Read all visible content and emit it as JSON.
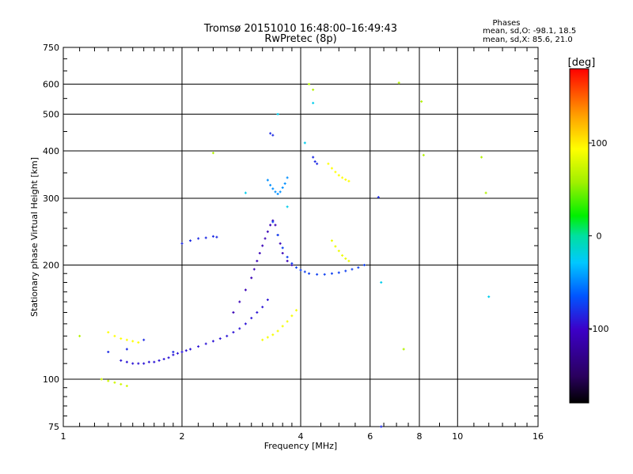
{
  "chart_data": {
    "type": "scatter",
    "title": "Tromsø 20151010 16:48:00–16:49:43",
    "subtitle": "RwPretec (8p)",
    "xlabel": "Frequency [MHz]",
    "ylabel": "Stationary phase Virtual Height [km]",
    "x_scale": "log",
    "y_scale": "log",
    "xlim": [
      1,
      16
    ],
    "ylim": [
      75,
      750
    ],
    "grid": true,
    "x_ticks": [
      1,
      2,
      4,
      6,
      8,
      10,
      16
    ],
    "x_tick_labels": [
      "1",
      "2",
      "4",
      "6",
      "8",
      "10",
      "16"
    ],
    "y_ticks": [
      75,
      100,
      200,
      300,
      400,
      500,
      600,
      750
    ],
    "y_tick_labels": [
      "75",
      "100",
      "200",
      "300",
      "400",
      "500",
      "600",
      "750"
    ],
    "phases_box": {
      "title": "Phases",
      "line_o": "mean, sd,O: -98.1, 18.5",
      "line_x": "mean, sd,X:  85.6, 21.0"
    },
    "colorbar": {
      "label": "[deg]",
      "range": [
        -180,
        180
      ],
      "ticks": [
        100,
        0,
        -100
      ],
      "tick_labels": [
        "100",
        "0",
        "-100"
      ]
    },
    "series": [
      {
        "phase_color_deg": -115,
        "x": [
          1.4,
          1.45,
          1.5,
          1.55,
          1.6,
          1.65,
          1.7,
          1.75,
          1.8,
          1.85,
          1.9,
          1.95,
          2.0,
          2.05,
          2.1,
          2.2,
          2.3,
          2.4,
          2.5,
          2.6,
          2.7,
          2.8,
          2.9,
          3.0,
          3.1,
          3.2,
          3.3
        ],
        "y": [
          112,
          111,
          110,
          110,
          110,
          111,
          111,
          112,
          113,
          114,
          116,
          117,
          118,
          119,
          120,
          122,
          124,
          126,
          128,
          130,
          133,
          136,
          140,
          145,
          150,
          155,
          162
        ]
      },
      {
        "phase_color_deg": -125,
        "x": [
          2.7,
          2.8,
          2.9,
          3.0,
          3.05,
          3.1,
          3.15,
          3.2,
          3.25,
          3.3,
          3.35,
          3.4,
          3.45,
          3.5,
          3.55,
          3.6,
          3.7,
          3.8
        ],
        "y": [
          150,
          160,
          172,
          185,
          195,
          205,
          215,
          225,
          235,
          245,
          255,
          262,
          255,
          240,
          228,
          215,
          205,
          200
        ]
      },
      {
        "phase_color_deg": -105,
        "x": [
          3.4,
          3.5,
          3.6,
          3.7,
          3.8,
          3.9,
          4.0,
          4.1,
          4.2,
          4.4,
          4.6,
          4.8,
          5.0,
          5.2,
          5.4,
          5.6,
          5.8
        ],
        "y": [
          260,
          240,
          222,
          210,
          202,
          197,
          194,
          192,
          190,
          189,
          189,
          190,
          191,
          193,
          195,
          197,
          200
        ]
      },
      {
        "phase_color_deg": -85,
        "x": [
          3.3,
          3.35,
          3.4,
          3.45,
          3.5,
          3.55,
          3.6,
          3.65,
          3.7
        ],
        "y": [
          335,
          325,
          318,
          312,
          308,
          312,
          320,
          328,
          340
        ]
      },
      {
        "phase_color_deg": 95,
        "x": [
          3.2,
          3.3,
          3.4,
          3.5,
          3.6,
          3.7,
          3.8,
          3.9
        ],
        "y": [
          127,
          129,
          131,
          134,
          138,
          142,
          147,
          152
        ]
      },
      {
        "phase_color_deg": 100,
        "x": [
          4.7,
          4.8,
          4.9,
          5.0,
          5.1,
          5.2,
          5.3
        ],
        "y": [
          370,
          360,
          352,
          345,
          340,
          336,
          333
        ]
      },
      {
        "phase_color_deg": 90,
        "x": [
          4.8,
          4.9,
          5.0,
          5.1,
          5.2,
          5.3
        ],
        "y": [
          232,
          224,
          218,
          212,
          208,
          205
        ]
      },
      {
        "phase_color_deg": 100,
        "x": [
          1.3,
          1.35,
          1.4,
          1.45,
          1.5,
          1.55
        ],
        "y": [
          133,
          130,
          128,
          127,
          126,
          125
        ]
      },
      {
        "phase_color_deg": 75,
        "x": [
          1.25,
          1.3,
          1.35,
          1.4,
          1.45
        ],
        "y": [
          100,
          99,
          98,
          97,
          96
        ]
      },
      {
        "phase_color_deg": -110,
        "x": [
          1.3,
          1.45,
          1.6,
          1.9,
          2.0,
          2.1,
          2.2,
          2.3,
          2.4,
          2.45,
          3.35,
          3.4,
          4.3,
          4.35,
          4.4,
          6.3,
          6.4
        ],
        "y": [
          118,
          120,
          127,
          118,
          228,
          232,
          235,
          236,
          238,
          237,
          445,
          440,
          385,
          375,
          370,
          302,
          75
        ]
      },
      {
        "phase_color_deg": 60,
        "x": [
          4.2,
          4.3,
          7.1,
          7.3,
          8.1,
          8.2,
          11.5,
          11.8,
          1.1,
          2.4
        ],
        "y": [
          600,
          580,
          605,
          120,
          540,
          390,
          385,
          310,
          130,
          395
        ]
      },
      {
        "phase_color_deg": -60,
        "x": [
          3.5,
          4.3,
          2.9,
          3.7,
          4.1,
          12.0,
          6.4
        ],
        "y": [
          500,
          535,
          310,
          285,
          420,
          165,
          180
        ]
      }
    ]
  }
}
